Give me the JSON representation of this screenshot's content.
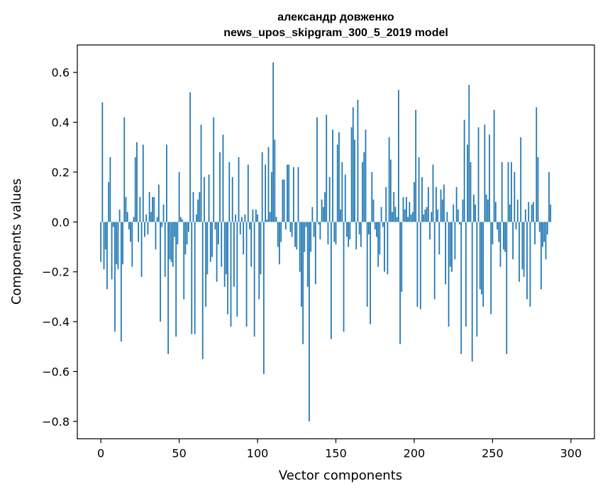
{
  "chart_data": {
    "type": "bar",
    "title_line1": "александр довженко",
    "title_line2": "news_upos_skipgram_300_5_2019 model",
    "xlabel": "Vector components",
    "ylabel": "Components values",
    "xlim": [
      -15,
      315
    ],
    "ylim": [
      -0.87,
      0.71
    ],
    "xticks": [
      0,
      50,
      100,
      150,
      200,
      250,
      300
    ],
    "xtick_labels": [
      "0",
      "50",
      "100",
      "150",
      "200",
      "250",
      "300"
    ],
    "yticks": [
      -0.8,
      -0.6,
      -0.4,
      -0.2,
      0.0,
      0.2,
      0.4,
      0.6
    ],
    "ytick_labels": [
      "−0.8",
      "−0.6",
      "−0.4",
      "−0.2",
      "0.0",
      "0.2",
      "0.4",
      "0.6"
    ],
    "bar_color": "#1f77b4",
    "values": [
      -0.16,
      0.48,
      -0.19,
      -0.11,
      -0.27,
      0.16,
      0.26,
      -0.23,
      -0.02,
      -0.44,
      -0.17,
      -0.19,
      0.05,
      -0.48,
      -0.17,
      0.42,
      0.1,
      0.04,
      -0.03,
      -0.08,
      -0.18,
      0.02,
      0.26,
      0.32,
      -0.08,
      0.1,
      -0.22,
      0.31,
      -0.06,
      0.03,
      -0.05,
      0.12,
      0.04,
      0.1,
      0.1,
      -0.11,
      0.02,
      0.15,
      -0.4,
      -0.02,
      0.07,
      -0.22,
      0.31,
      -0.53,
      -0.15,
      -0.16,
      -0.18,
      -0.06,
      -0.46,
      -0.09,
      0.2,
      0.02,
      0.01,
      -0.31,
      -0.13,
      -0.09,
      -0.04,
      0.52,
      -0.45,
      0.12,
      -0.45,
      0.03,
      0.09,
      0.12,
      0.39,
      -0.55,
      0.18,
      -0.34,
      -0.21,
      0.19,
      -0.16,
      -0.14,
      0.42,
      -0.03,
      -0.24,
      -0.09,
      0.28,
      -0.18,
      0.35,
      -0.26,
      -0.21,
      -0.37,
      0.24,
      -0.42,
      0.18,
      -0.26,
      0.03,
      -0.38,
      0.26,
      -0.05,
      0.02,
      -0.13,
      0.03,
      -0.42,
      0.23,
      -0.03,
      -0.18,
      0.05,
      -0.46,
      0.05,
      0.03,
      -0.31,
      -0.21,
      0.28,
      -0.61,
      0.23,
      0.01,
      0.3,
      0.04,
      0.2,
      0.64,
      0.33,
      0.02,
      -0.1,
      -0.17,
      -0.08,
      0.17,
      0.17,
      -0.03,
      0.23,
      0.23,
      -0.04,
      -0.06,
      0.22,
      -0.1,
      -0.11,
      0.22,
      -0.2,
      -0.34,
      -0.49,
      -0.12,
      -0.02,
      -0.26,
      -0.8,
      -0.12,
      0.06,
      -0.06,
      -0.25,
      0.42,
      -0.01,
      -0.07,
      0.09,
      0.06,
      0.12,
      0.43,
      -0.09,
      0.18,
      -0.47,
      0.37,
      -0.08,
      -0.09,
      0.31,
      0.36,
      0.05,
      0.24,
      -0.44,
      0.19,
      -0.06,
      -0.1,
      -0.07,
      0.38,
      0.46,
      0.33,
      -0.11,
      0.49,
      -0.05,
      -0.1,
      0.24,
      0.28,
      0.37,
      -0.34,
      -0.05,
      -0.41,
      0.2,
      0.09,
      -0.03,
      -0.06,
      -0.18,
      -0.13,
      0.06,
      -0.02,
      -0.2,
      0.14,
      -0.21,
      0.34,
      0.25,
      0.04,
      0.12,
      0.06,
      0.02,
      0.53,
      -0.49,
      -0.28,
      0.1,
      0.05,
      0.1,
      0.02,
      0.08,
      0.03,
      0.04,
      0.16,
      0.45,
      -0.34,
      0.26,
      -0.35,
      0.18,
      0.03,
      0.05,
      0.06,
      0.14,
      -0.07,
      0.04,
      0.23,
      -0.31,
      0.14,
      0.05,
      -0.13,
      0.13,
      0.09,
      0.15,
      -0.25,
      0.04,
      -0.42,
      -0.18,
      -0.2,
      0.07,
      -0.15,
      0.14,
      0.05,
      -0.01,
      -0.53,
      0.09,
      0.41,
      -0.42,
      0.31,
      0.55,
      0.24,
      -0.56,
      0.11,
      0.07,
      -0.46,
      0.38,
      -0.27,
      -0.29,
      -0.34,
      0.39,
      0.11,
      0.09,
      0.35,
      -0.37,
      -0.09,
      0.45,
      0.08,
      -0.03,
      -0.08,
      -0.18,
      0.24,
      -0.11,
      -0.12,
      -0.53,
      0.24,
      0.07,
      0.24,
      -0.15,
      0.2,
      -0.03,
      0.09,
      -0.24,
      0.34,
      -0.19,
      -0.22,
      0.05,
      -0.31,
      0.08,
      -0.34,
      0.07,
      0.08,
      -0.09,
      0.46,
      0.26,
      -0.04,
      -0.27,
      -0.1,
      -0.08,
      -0.15,
      -0.05,
      0.2,
      0.07
    ]
  }
}
